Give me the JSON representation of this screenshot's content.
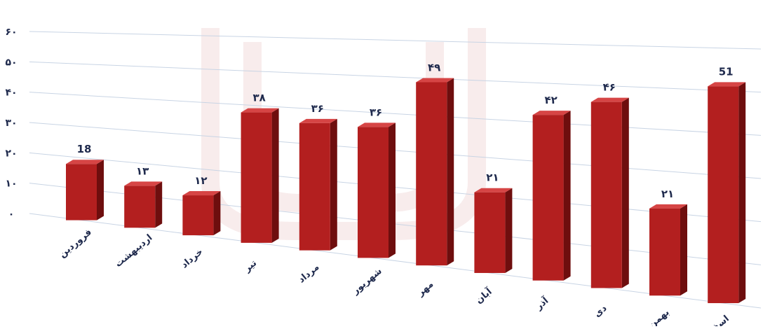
{
  "chart_data": {
    "type": "bar",
    "title": "",
    "xlabel": "",
    "ylabel": "",
    "ylim": [
      0,
      60
    ],
    "y_ticks": [
      "۰",
      "۱۰",
      "۲۰",
      "۳۰",
      "۴۰",
      "۵۰",
      "۶۰"
    ],
    "y_tick_values": [
      0,
      10,
      20,
      30,
      40,
      50,
      60
    ],
    "grid": true,
    "legend": "none",
    "categories": [
      "فروردین",
      "اردیبهشت",
      "خرداد",
      "تیر",
      "مرداد",
      "شهریور",
      "مهر",
      "آبان",
      "آذر",
      "دی",
      "بهمن",
      "اسفند"
    ],
    "values": [
      18,
      13,
      12,
      38,
      36,
      36,
      49,
      21,
      42,
      46,
      21,
      51
    ],
    "value_labels": [
      "18",
      "۱۳",
      "۱۲",
      "۳۸",
      "۳۶",
      "۳۶",
      "۴۹",
      "۲۱",
      "۴۲",
      "۴۶",
      "۲۱",
      "51"
    ],
    "bar_color": "#b31f1f",
    "bar_side_color": "#6e0e0e",
    "bar_top_color": "#d64545"
  }
}
